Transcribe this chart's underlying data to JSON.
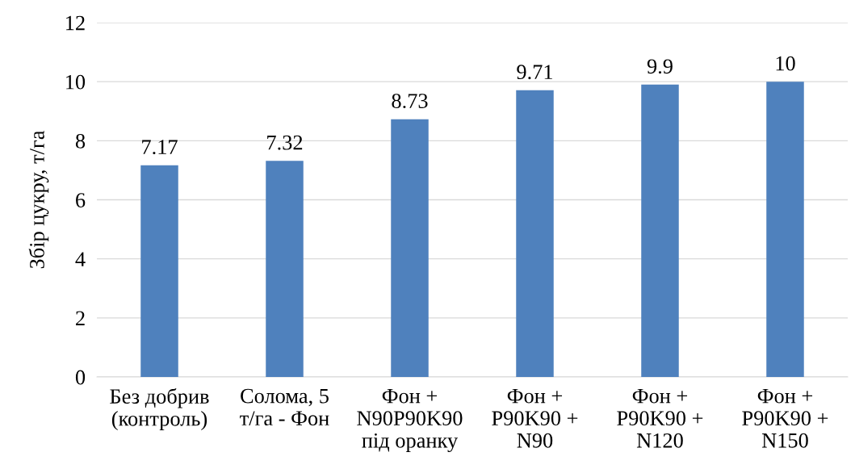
{
  "chart_data": {
    "type": "bar",
    "ylabel": "Збір цукру, т/га",
    "categories": [
      "Без добрив\n(контроль)",
      "Солома, 5\nт/га - Фон",
      "Фон +\nN90P90K90\nпід оранку",
      "Фон +\nP90K90 +\nN90",
      "Фон +\nP90K90 +\nN120",
      "Фон +\nP90K90 +\nN150"
    ],
    "values": [
      7.17,
      7.32,
      8.73,
      9.71,
      9.9,
      10
    ],
    "color": "#4f81bd",
    "ylim": [
      0,
      12
    ],
    "yticks": [
      0,
      2,
      4,
      6,
      8,
      10,
      12
    ],
    "grid": "y",
    "data_labels": true
  }
}
